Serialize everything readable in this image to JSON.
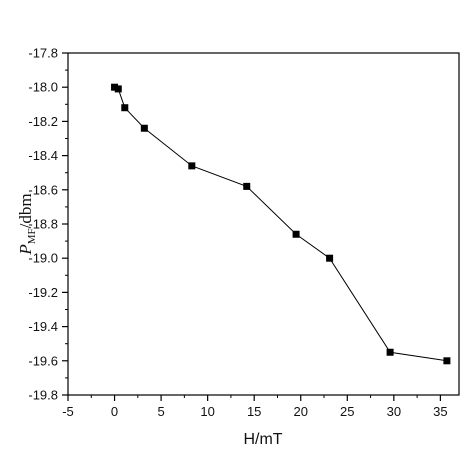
{
  "chart_data": {
    "type": "line",
    "title": "",
    "xlabel": "H/mT",
    "ylabel": {
      "main": "P",
      "subscript": "MF",
      "suffix": "/dbm"
    },
    "xlim": [
      -5,
      37
    ],
    "ylim": [
      -19.8,
      -17.8
    ],
    "x_ticks": [
      -5,
      0,
      5,
      10,
      15,
      20,
      25,
      30,
      35
    ],
    "x_tick_labels": [
      "-5",
      "0",
      "5",
      "10",
      "15",
      "20",
      "25",
      "30",
      "35"
    ],
    "y_ticks": [
      -17.8,
      -18.0,
      -18.2,
      -18.4,
      -18.6,
      -18.8,
      -19.0,
      -19.2,
      -19.4,
      -19.6,
      -19.8
    ],
    "y_tick_labels": [
      "-17.8",
      "-18.0",
      "-18.2",
      "-18.4",
      "-18.6",
      "-18.8",
      "-19.0",
      "-19.2",
      "-19.4",
      "-19.6",
      "-19.8"
    ],
    "grid": false,
    "series": [
      {
        "marker": "square",
        "color": "#000000",
        "points": [
          {
            "x": 0,
            "y": -18.0
          },
          {
            "x": 0.4,
            "y": -18.01
          },
          {
            "x": 1.1,
            "y": -18.12
          },
          {
            "x": 3.2,
            "y": -18.24
          },
          {
            "x": 8.3,
            "y": -18.46
          },
          {
            "x": 14.2,
            "y": -18.58
          },
          {
            "x": 19.5,
            "y": -18.86
          },
          {
            "x": 23.1,
            "y": -19.0
          },
          {
            "x": 29.6,
            "y": -19.55
          },
          {
            "x": 35.7,
            "y": -19.6
          }
        ]
      }
    ]
  }
}
